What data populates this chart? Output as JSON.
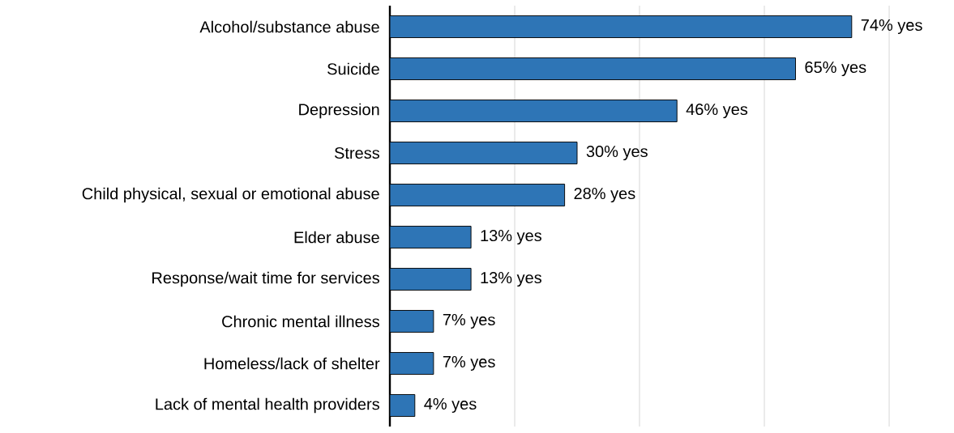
{
  "chart_data": {
    "type": "bar",
    "orientation": "horizontal",
    "color": "#2e75b6",
    "categories": [
      "Alcohol/substance abuse",
      "Suicide",
      "Depression",
      "Stress",
      "Child physical, sexual or emotional abuse",
      "Elder abuse",
      "Response/wait time for services",
      "Chronic mental illness",
      "Homeless/lack of shelter",
      "Lack of mental health providers"
    ],
    "values": [
      74,
      65,
      46,
      30,
      28,
      13,
      13,
      7,
      7,
      4
    ],
    "value_labels": [
      "74% yes",
      "65% yes",
      "46% yes",
      "30% yes",
      "28% yes",
      "13% yes",
      "13% yes",
      "7% yes",
      "7% yes",
      "4% yes"
    ],
    "xlim": [
      0,
      80
    ],
    "xticks": [
      {
        "value": 0,
        "label": null
      },
      {
        "value": 20,
        "label": null
      },
      {
        "value": 40,
        "label": null
      },
      {
        "value": 60,
        "label": null
      },
      {
        "value": 80,
        "label": null
      }
    ],
    "grid": "x",
    "tick_labels": "y"
  }
}
